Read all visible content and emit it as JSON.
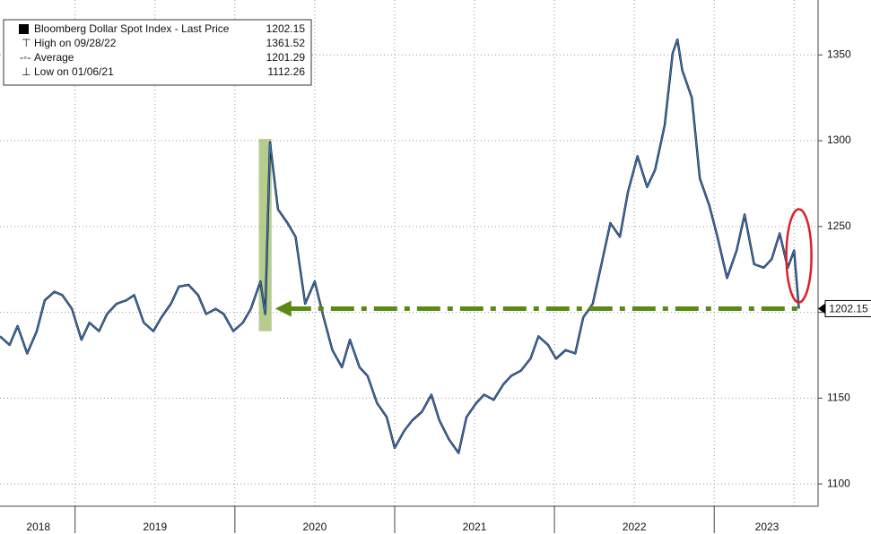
{
  "chart_data": {
    "type": "line",
    "series": [
      {
        "name": "Bloomberg Dollar Spot Index - Last Price",
        "color": "#3b78c8",
        "x": [
          2018.53,
          2018.59,
          2018.64,
          2018.7,
          2018.76,
          2018.81,
          2018.87,
          2018.92,
          2018.98,
          2019.04,
          2019.09,
          2019.15,
          2019.2,
          2019.26,
          2019.32,
          2019.37,
          2019.43,
          2019.49,
          2019.54,
          2019.6,
          2019.65,
          2019.71,
          2019.77,
          2019.82,
          2019.88,
          2019.93,
          2019.99,
          2020.05,
          2020.1,
          2020.16,
          2020.19,
          2020.22,
          2020.27,
          2020.33,
          2020.38,
          2020.44,
          2020.5,
          2020.55,
          2020.61,
          2020.67,
          2020.72,
          2020.78,
          2020.83,
          2020.89,
          2020.95,
          2021.0,
          2021.06,
          2021.11,
          2021.17,
          2021.23,
          2021.28,
          2021.34,
          2021.4,
          2021.45,
          2021.51,
          2021.56,
          2021.62,
          2021.68,
          2021.73,
          2021.79,
          2021.85,
          2021.9,
          2021.96,
          2022.01,
          2022.07,
          2022.13,
          2022.18,
          2022.24,
          2022.29,
          2022.35,
          2022.41,
          2022.46,
          2022.52,
          2022.58,
          2022.63,
          2022.69,
          2022.74,
          2022.77,
          2022.8,
          2022.86,
          2022.91,
          2022.97,
          2023.02,
          2023.08,
          2023.14,
          2023.19,
          2023.25,
          2023.31,
          2023.36,
          2023.41,
          2023.46,
          2023.5,
          2023.53
        ],
        "values": [
          1186,
          1181,
          1192,
          1176,
          1189,
          1207,
          1212,
          1210,
          1202,
          1184,
          1194,
          1189,
          1199,
          1205,
          1207,
          1210,
          1194,
          1189,
          1197,
          1205,
          1215,
          1216,
          1210,
          1199,
          1202,
          1199,
          1189,
          1194,
          1202,
          1218,
          1199,
          1299,
          1260,
          1252,
          1244,
          1205,
          1218,
          1199,
          1178,
          1168,
          1184,
          1168,
          1163,
          1147,
          1139,
          1121,
          1131,
          1137,
          1142,
          1152,
          1137,
          1126,
          1118,
          1139,
          1147,
          1152,
          1149,
          1158,
          1163,
          1166,
          1173,
          1186,
          1181,
          1173,
          1178,
          1176,
          1197,
          1205,
          1226,
          1252,
          1244,
          1270,
          1291,
          1273,
          1283,
          1309,
          1351,
          1359,
          1341,
          1325,
          1278,
          1262,
          1244,
          1220,
          1236,
          1257,
          1228,
          1226,
          1231,
          1246,
          1226,
          1236,
          1202.15
        ]
      }
    ],
    "stats": [
      {
        "label": "Bloomberg Dollar Spot Index - Last Price",
        "value": 1202.15
      },
      {
        "label": "High on 09/28/22",
        "value": 1361.52
      },
      {
        "label": "Average",
        "value": 1201.29
      },
      {
        "label": "Low on 01/06/21",
        "value": 1112.26
      }
    ],
    "xlim": [
      2018.53,
      2023.65
    ],
    "xticks": [
      {
        "value": 2018.77,
        "label": "2018"
      },
      {
        "value": 2019.5,
        "label": "2019"
      },
      {
        "value": 2020.5,
        "label": "2020"
      },
      {
        "value": 2021.5,
        "label": "2021"
      },
      {
        "value": 2022.5,
        "label": "2022"
      },
      {
        "value": 2023.33,
        "label": "2023"
      }
    ],
    "xtick_marks": [
      2019,
      2020,
      2021,
      2022,
      2023
    ],
    "xgrid": [
      2019,
      2019.5,
      2020,
      2020.5,
      2021,
      2021.5,
      2022,
      2022.5,
      2023,
      2023.5
    ],
    "ylim": [
      1087,
      1382
    ],
    "yticks": [
      1100,
      1150,
      1200,
      1250,
      1300,
      1350
    ],
    "grid": true,
    "highlight": {
      "xlim": [
        2020.15,
        2020.23
      ],
      "ylim": [
        1189,
        1301
      ],
      "color": "#9dbb6a"
    },
    "arrow_color": "#5a8a14",
    "circle_color": "#d8232a"
  }
}
